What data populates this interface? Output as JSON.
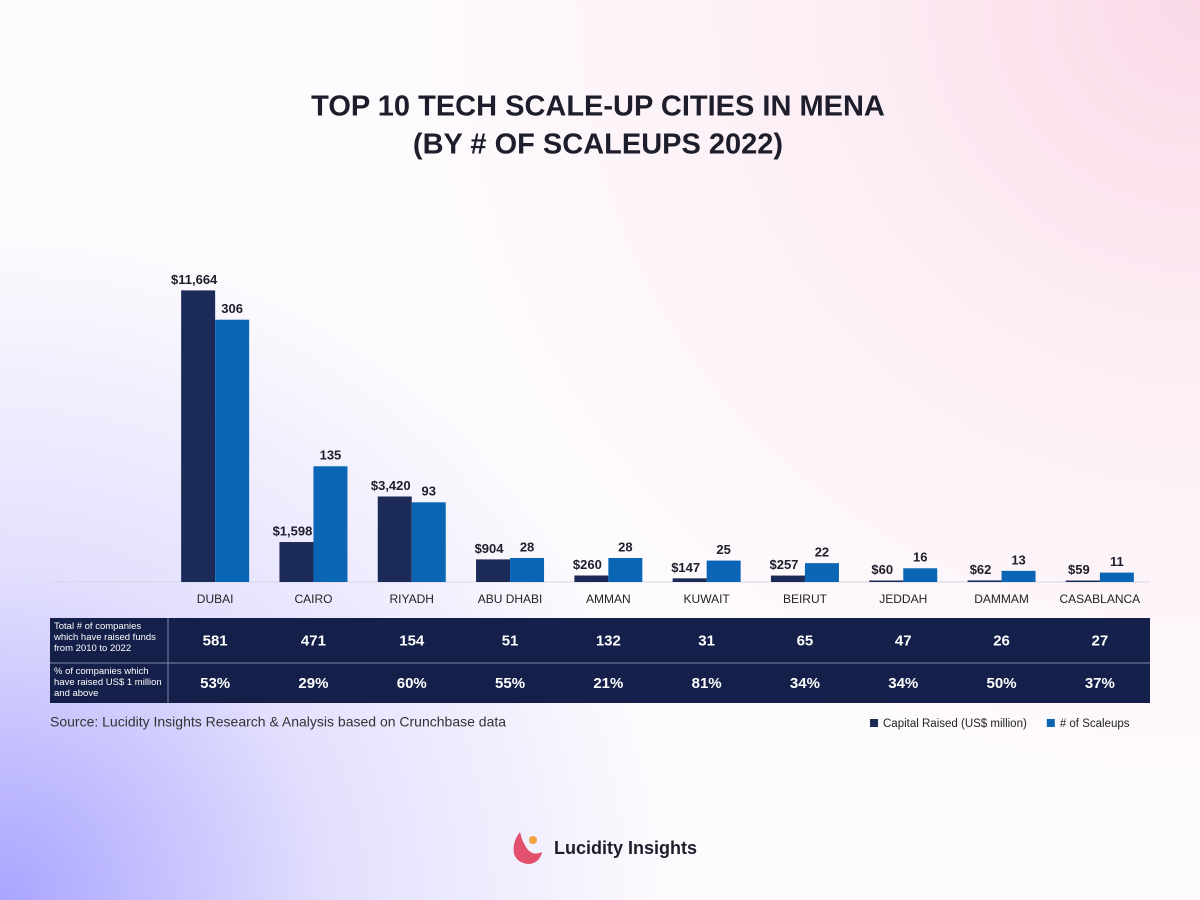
{
  "chart_data": {
    "type": "bar",
    "title": "TOP 10 TECH SCALE-UP CITIES IN MENA",
    "subtitle": "(BY # OF SCALEUPS 2022)",
    "categories": [
      "DUBAI",
      "CAIRO",
      "RIYADH",
      "ABU DHABI",
      "AMMAN",
      "KUWAIT",
      "BEIRUT",
      "JEDDAH",
      "DAMMAM",
      "CASABLANCA"
    ],
    "series": [
      {
        "name": "Capital Raised (US$ million)",
        "color": "#1b2a57",
        "values": [
          11664,
          1598,
          3420,
          904,
          260,
          147,
          257,
          60,
          62,
          59
        ],
        "value_labels": [
          "$11,664",
          "$1,598",
          "$3,420",
          "$904",
          "$260",
          "$147",
          "$257",
          "$60",
          "$62",
          "$59"
        ]
      },
      {
        "name": "# of Scaleups",
        "color": "#0a66b5",
        "axis": "y2",
        "values": [
          306,
          135,
          93,
          28,
          28,
          25,
          22,
          16,
          13,
          11
        ]
      }
    ],
    "ylim": [
      0,
      12000
    ],
    "y2lim": [
      0,
      350
    ],
    "table": [
      {
        "label": "Total # of companies which have raised funds from 2010 to 2022",
        "values": [
          581,
          471,
          154,
          51,
          132,
          31,
          65,
          47,
          26,
          27
        ]
      },
      {
        "label": "% of companies which have raised US$ 1 million and above",
        "values": [
          53,
          29,
          60,
          55,
          21,
          81,
          34,
          34,
          50,
          37
        ],
        "value_labels": [
          "53%",
          "29%",
          "60%",
          "55%",
          "21%",
          "81%",
          "34%",
          "34%",
          "50%",
          "37%"
        ]
      }
    ],
    "source": "Source: Lucidity Insights Research & Analysis based on Crunchbase data",
    "brand": "Lucidity Insights"
  }
}
